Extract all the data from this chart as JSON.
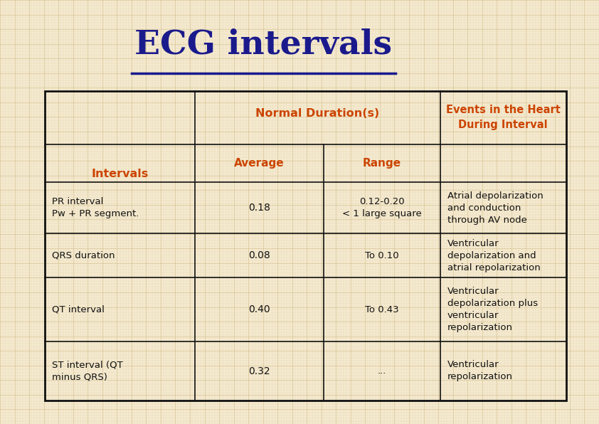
{
  "title": "ECG intervals",
  "title_color": "#1a1a8c",
  "title_fontsize": 34,
  "background_color": "#f5ead0",
  "grid_color_light": "#ddc9a0",
  "grid_color_dark": "#cdb880",
  "table_border_color": "#111111",
  "header_color": "#cc4400",
  "body_text_color": "#111111",
  "intervals_label": "Intervals",
  "col_header_nd": "Normal Duration(s)",
  "col_header_ev": "Events in the Heart\nDuring Interval",
  "sub_avg": "Average",
  "sub_rng": "Range",
  "rows": [
    {
      "interval": "PR interval\nPw + PR segment.",
      "average": "0.18",
      "range": "0.12-0.20\n< 1 large square",
      "events": "Atrial depolarization\nand conduction\nthrough AV node"
    },
    {
      "interval": "QRS duration",
      "average": "0.08",
      "range": "To 0.10",
      "events": "Ventricular\ndepolarization and\natrial repolarization"
    },
    {
      "interval": "QT interval",
      "average": "0.40",
      "range": "To 0.43",
      "events": "Ventricular\ndepolarization plus\nventricular\nrepolarization"
    },
    {
      "interval": "ST interval (QT\nminus QRS)",
      "average": "0.32",
      "range": "...",
      "events": "Ventricular\nrepolarization"
    }
  ],
  "fig_width": 8.42,
  "fig_height": 5.96,
  "dpi": 100
}
